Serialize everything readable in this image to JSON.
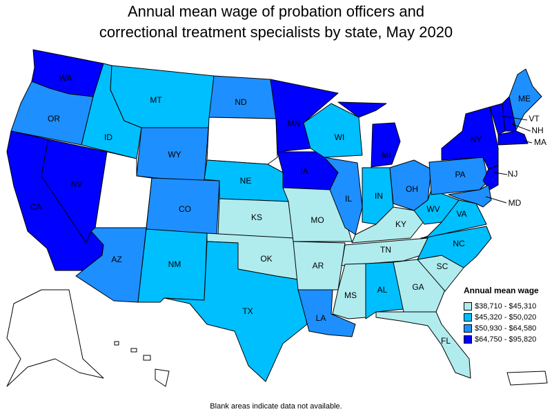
{
  "title_line1": "Annual mean wage of probation officers and",
  "title_line2": "correctional treatment specialists by state, May 2020",
  "legend": {
    "title": "Annual mean wage",
    "items": [
      {
        "label": "$38,710 - $45,310",
        "color": "#b0ecee"
      },
      {
        "label": "$45,320 - $50,020",
        "color": "#00bfff"
      },
      {
        "label": "$50,930 - $64,580",
        "color": "#1e8fff"
      },
      {
        "label": "$64,750 - $95,820",
        "color": "#0000ff"
      }
    ]
  },
  "footnote": "Blank areas indicate data not available.",
  "states": [
    {
      "abbr": "WA",
      "bin": 3
    },
    {
      "abbr": "OR",
      "bin": 2
    },
    {
      "abbr": "CA",
      "bin": 3
    },
    {
      "abbr": "NV",
      "bin": 3
    },
    {
      "abbr": "ID",
      "bin": 1
    },
    {
      "abbr": "MT",
      "bin": 1
    },
    {
      "abbr": "WY",
      "bin": 2
    },
    {
      "abbr": "UT",
      "bin": null
    },
    {
      "abbr": "AZ",
      "bin": 2
    },
    {
      "abbr": "CO",
      "bin": 2
    },
    {
      "abbr": "NM",
      "bin": 1
    },
    {
      "abbr": "ND",
      "bin": 2
    },
    {
      "abbr": "SD",
      "bin": null
    },
    {
      "abbr": "NE",
      "bin": 1
    },
    {
      "abbr": "KS",
      "bin": 0
    },
    {
      "abbr": "OK",
      "bin": 0
    },
    {
      "abbr": "TX",
      "bin": 1
    },
    {
      "abbr": "MN",
      "bin": 3
    },
    {
      "abbr": "IA",
      "bin": 3
    },
    {
      "abbr": "MO",
      "bin": 0
    },
    {
      "abbr": "AR",
      "bin": 0
    },
    {
      "abbr": "LA",
      "bin": 2
    },
    {
      "abbr": "WI",
      "bin": 1
    },
    {
      "abbr": "IL",
      "bin": 2
    },
    {
      "abbr": "MI",
      "bin": 3
    },
    {
      "abbr": "IN",
      "bin": 1
    },
    {
      "abbr": "OH",
      "bin": 2
    },
    {
      "abbr": "KY",
      "bin": 0
    },
    {
      "abbr": "TN",
      "bin": 0
    },
    {
      "abbr": "MS",
      "bin": 0
    },
    {
      "abbr": "AL",
      "bin": 1
    },
    {
      "abbr": "GA",
      "bin": 0
    },
    {
      "abbr": "FL",
      "bin": 0
    },
    {
      "abbr": "SC",
      "bin": 0
    },
    {
      "abbr": "NC",
      "bin": 1
    },
    {
      "abbr": "VA",
      "bin": 1
    },
    {
      "abbr": "WV",
      "bin": 1
    },
    {
      "abbr": "PA",
      "bin": 2
    },
    {
      "abbr": "NY",
      "bin": 3
    },
    {
      "abbr": "VT",
      "bin": 3
    },
    {
      "abbr": "NH",
      "bin": 3
    },
    {
      "abbr": "MA",
      "bin": 3
    },
    {
      "abbr": "ME",
      "bin": 2
    },
    {
      "abbr": "NJ",
      "bin": 3
    },
    {
      "abbr": "MD",
      "bin": 2
    },
    {
      "abbr": "AK",
      "bin": null
    },
    {
      "abbr": "HI",
      "bin": null
    },
    {
      "abbr": "PR",
      "bin": null
    }
  ]
}
